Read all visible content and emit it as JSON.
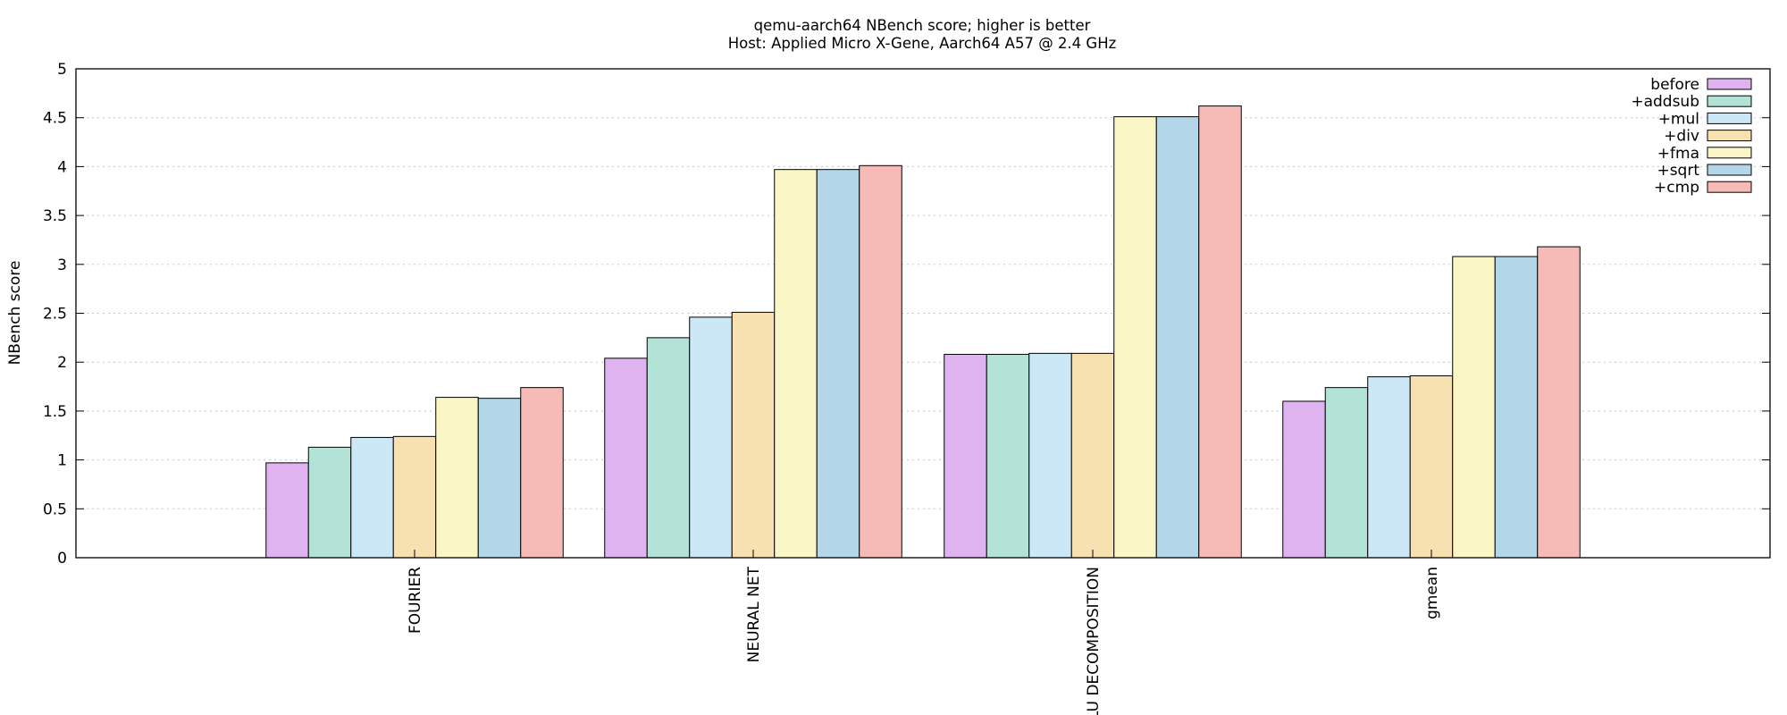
{
  "chart_data": {
    "type": "bar",
    "title": "qemu-aarch64 NBench score; higher is better",
    "subtitle": "Host: Applied Micro X-Gene, Aarch64 A57 @ 2.4 GHz",
    "xlabel": "",
    "ylabel": "NBench score",
    "ylim": [
      0,
      5
    ],
    "yticks": [
      "0",
      "0.5",
      "1",
      "1.5",
      "2",
      "2.5",
      "3",
      "3.5",
      "4",
      "4.5",
      "5"
    ],
    "grid": true,
    "legend_position": "top-right",
    "categories": [
      "FOURIER",
      "NEURAL NET",
      "LU DECOMPOSITION",
      "gmean"
    ],
    "series": [
      {
        "name": "before",
        "color": "#dfb3f0",
        "values": [
          0.97,
          2.04,
          2.08,
          1.6
        ]
      },
      {
        "name": "+addsub",
        "color": "#b3e2d6",
        "values": [
          1.13,
          2.25,
          2.08,
          1.74
        ]
      },
      {
        "name": "+mul",
        "color": "#cce8f7",
        "values": [
          1.23,
          2.46,
          2.09,
          1.85
        ]
      },
      {
        "name": "+div",
        "color": "#f7e1b0",
        "values": [
          1.24,
          2.51,
          2.09,
          1.86
        ]
      },
      {
        "name": "+fma",
        "color": "#faf6c6",
        "values": [
          1.64,
          3.97,
          4.51,
          3.08
        ]
      },
      {
        "name": "+sqrt",
        "color": "#b3d7e8",
        "values": [
          1.63,
          3.97,
          4.51,
          3.08
        ]
      },
      {
        "name": "+cmp",
        "color": "#f7bbb7",
        "values": [
          1.74,
          4.01,
          4.62,
          3.18
        ]
      }
    ]
  }
}
